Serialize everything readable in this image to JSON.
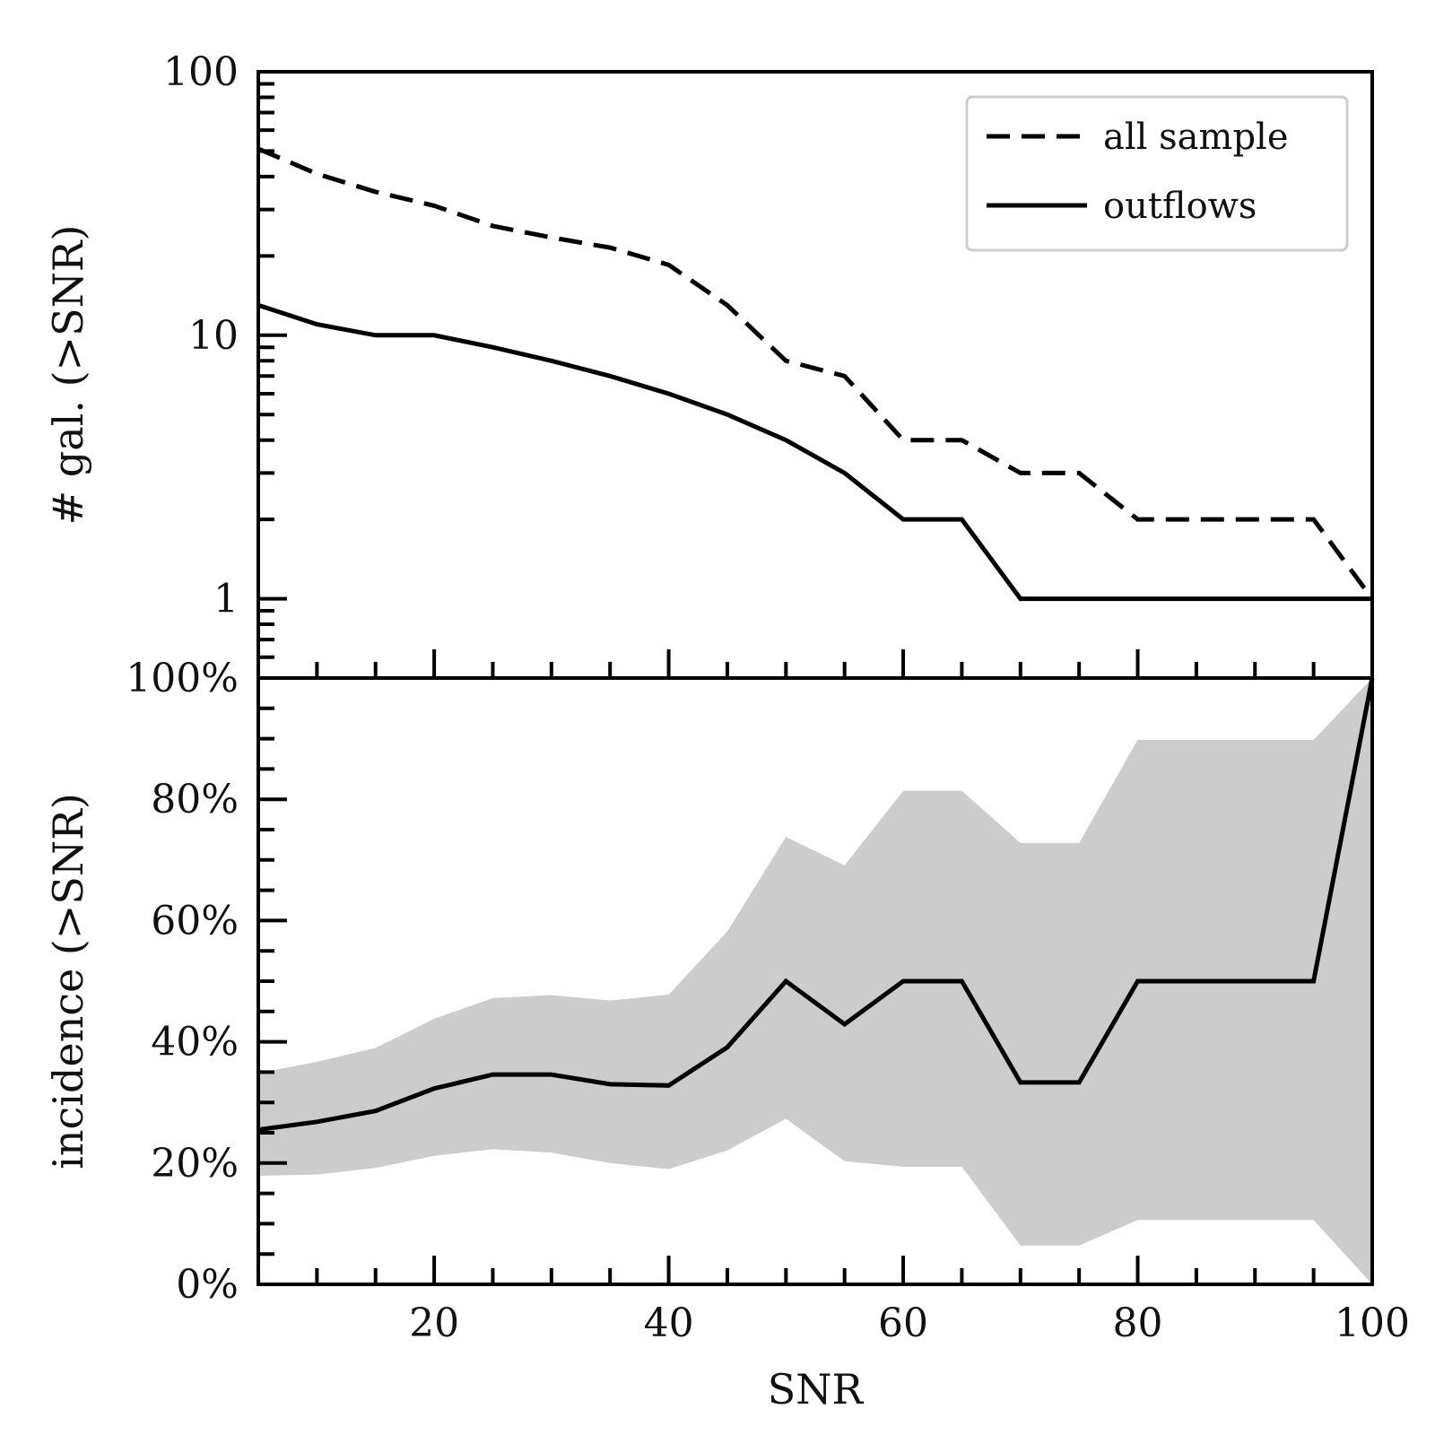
{
  "chart_data": [
    {
      "type": "line",
      "panel": "top",
      "yscale": "log",
      "ylabel": "# gal. (>SNR)",
      "xlabel": "",
      "xlim": [
        5,
        100
      ],
      "ylim": [
        0.5,
        100
      ],
      "yticks": [
        1,
        10,
        100
      ],
      "ytick_labels": [
        "1",
        "10",
        "100"
      ],
      "legend": {
        "placement": "top-right",
        "entries": [
          "all sample",
          "outflows"
        ]
      },
      "x": [
        5,
        10,
        15,
        20,
        25,
        30,
        35,
        40,
        45,
        50,
        55,
        60,
        65,
        70,
        75,
        80,
        85,
        90,
        95,
        100
      ],
      "series": [
        {
          "name": "all sample",
          "style": "dashed",
          "values": [
            51,
            41,
            35,
            31,
            26,
            23.5,
            21.5,
            18.5,
            13,
            8,
            7,
            4,
            4,
            3,
            3,
            2,
            2,
            2,
            2,
            1
          ]
        },
        {
          "name": "outflows",
          "style": "solid",
          "values": [
            13,
            11,
            10,
            10,
            9,
            8,
            7,
            6,
            5,
            4,
            3,
            2,
            2,
            1,
            1,
            1,
            1,
            1,
            1,
            1
          ]
        }
      ]
    },
    {
      "type": "area",
      "panel": "bottom",
      "ylabel": "incidence (>SNR)",
      "xlabel": "SNR",
      "xlim": [
        5,
        100
      ],
      "ylim": [
        0,
        100
      ],
      "xticks": [
        20,
        40,
        60,
        80,
        100
      ],
      "xtick_labels": [
        "20",
        "40",
        "60",
        "80",
        "100"
      ],
      "yticks": [
        0,
        20,
        40,
        60,
        80,
        100
      ],
      "ytick_labels": [
        "0%",
        "20%",
        "40%",
        "60%",
        "80%",
        "100%"
      ],
      "x": [
        5,
        10,
        15,
        20,
        25,
        30,
        35,
        40,
        45,
        50,
        55,
        60,
        65,
        70,
        75,
        80,
        85,
        90,
        95,
        100
      ],
      "series": [
        {
          "name": "incidence",
          "style": "solid",
          "values": [
            25.5,
            26.8,
            28.6,
            32.3,
            34.6,
            34.6,
            33.0,
            32.8,
            39.1,
            50.0,
            42.9,
            50.0,
            50.0,
            33.3,
            33.3,
            50.0,
            50.0,
            50.0,
            50.0,
            100
          ]
        },
        {
          "name": "confidence band upper",
          "style": "fill",
          "values": [
            34.8,
            36.7,
            39.0,
            43.8,
            47.2,
            47.7,
            46.8,
            47.8,
            58.2,
            73.8,
            69.1,
            81.4,
            81.4,
            72.8,
            72.8,
            89.8,
            89.8,
            89.8,
            89.8,
            100
          ]
        },
        {
          "name": "confidence band lower",
          "style": "fill",
          "values": [
            17.9,
            18.1,
            19.2,
            21.2,
            22.3,
            21.7,
            20.0,
            19.0,
            22.1,
            27.3,
            20.3,
            19.4,
            19.4,
            6.4,
            6.4,
            10.6,
            10.6,
            10.6,
            10.6,
            0
          ]
        }
      ]
    }
  ]
}
